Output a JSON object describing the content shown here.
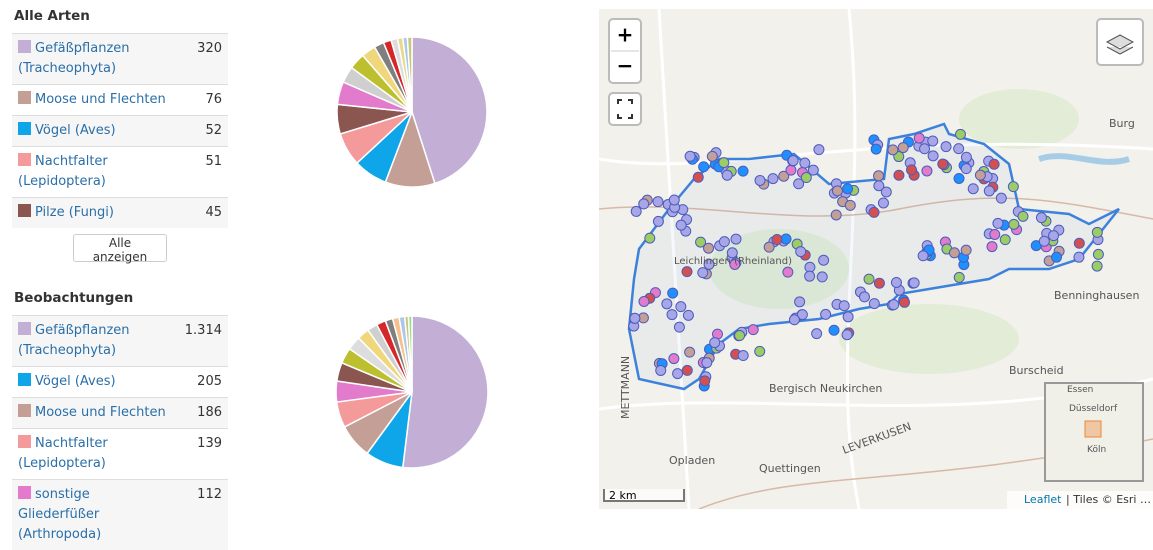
{
  "sections": [
    {
      "title": "Alle Arten",
      "rows": [
        {
          "label": "Gefäßpflanzen (Tracheophyta)",
          "count": "320"
        },
        {
          "label": "Moose und Flechten",
          "count": "76"
        },
        {
          "label": "Vögel (Aves)",
          "count": "52"
        },
        {
          "label": "Nachtfalter (Lepidoptera)",
          "count": "51"
        },
        {
          "label": "Pilze (Fungi)",
          "count": "45"
        }
      ],
      "button": "Alle anzeigen",
      "pie": {
        "values": [
          320,
          76,
          52,
          51,
          45,
          35,
          25,
          25,
          22,
          15,
          12,
          10,
          8,
          7,
          7
        ],
        "colors": [
          "#c3aed6",
          "#c49f96",
          "#0ea5e9",
          "#f59a9a",
          "#8b5650",
          "#e27bcb",
          "#cfcfcf",
          "#bcbf2e",
          "#f0d77c",
          "#7f7f7f",
          "#d62728",
          "#dddddd",
          "#e8d98a",
          "#aec7e8",
          "#c7c77a"
        ]
      }
    },
    {
      "title": "Beobachtungen",
      "rows": [
        {
          "label": "Gefäßpflanzen (Tracheophyta)",
          "count": "1.314"
        },
        {
          "label": "Vögel (Aves)",
          "count": "205"
        },
        {
          "label": "Moose und Flechten",
          "count": "186"
        },
        {
          "label": "Nachtfalter (Lepidoptera)",
          "count": "139"
        },
        {
          "label": "sonstige Gliederfüßer (Arthropoda)",
          "count": "112"
        }
      ],
      "pie": {
        "values": [
          1314,
          205,
          186,
          139,
          112,
          100,
          85,
          75,
          65,
          55,
          50,
          40,
          35,
          30,
          20,
          19
        ],
        "colors": [
          "#c3aed6",
          "#0ea5e9",
          "#c49f96",
          "#f59a9a",
          "#e27bcb",
          "#8b5650",
          "#bcbf2e",
          "#dddddd",
          "#f0d77c",
          "#cfcfcf",
          "#d62728",
          "#7f7f7f",
          "#f5c08a",
          "#aec7e8",
          "#c7c77a",
          "#98df8a"
        ]
      }
    }
  ],
  "map": {
    "zoom_in": "+",
    "zoom_out": "−",
    "scale": "2 km",
    "attribution_link": "Leaflet",
    "attribution_text": "| Tiles © Esri …",
    "places": [
      "Burg",
      "Benninghausen",
      "Burscheid",
      "Bergisch Neukirchen",
      "Opladen",
      "Quettingen",
      "LEVERKUSEN",
      "METTMANN",
      "Leichlingen (Rheinland)",
      "Essen",
      "Düsseldorf",
      "Köln"
    ]
  }
}
